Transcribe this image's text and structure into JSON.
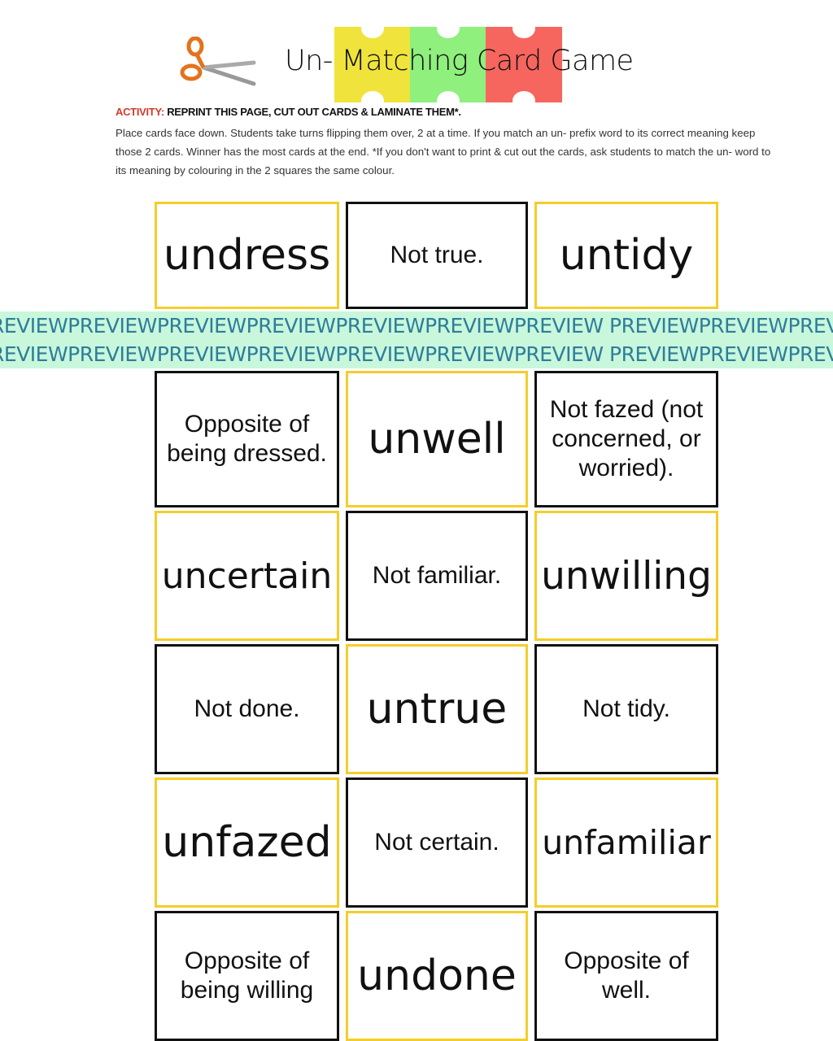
{
  "header": {
    "title": "Un- Matching Card Game",
    "activity_label": "ACTIVITY:",
    "activity_text": "REPRINT THIS PAGE, CUT OUT CARDS & LAMINATE THEM*.",
    "instructions": "Place cards face down. Students take turns flipping them over, 2 at a time. If you match an un- prefix word to its correct meaning keep those 2 cards. Winner has the most cards at the end. *If you don't want to print & cut out the cards, ask students to match the un- word to its meaning by colouring in the 2 squares the same colour.",
    "puzzle_colors": [
      "#f0e33b",
      "#8ff07d",
      "#f7655f"
    ]
  },
  "cards": [
    {
      "text": "undress",
      "kind": "word"
    },
    {
      "text": "Not true.",
      "kind": "def"
    },
    {
      "text": "untidy",
      "kind": "word"
    },
    {
      "text": "Opposite of being dressed.",
      "kind": "def"
    },
    {
      "text": "unwell",
      "kind": "word"
    },
    {
      "text": "Not fazed (not concerned, or worried).",
      "kind": "def"
    },
    {
      "text": "uncertain",
      "kind": "word"
    },
    {
      "text": "Not familiar.",
      "kind": "def"
    },
    {
      "text": "unwilling",
      "kind": "word"
    },
    {
      "text": "Not done.",
      "kind": "def"
    },
    {
      "text": "untrue",
      "kind": "word"
    },
    {
      "text": "Not tidy.",
      "kind": "def"
    },
    {
      "text": "unfazed",
      "kind": "word"
    },
    {
      "text": "Not certain.",
      "kind": "def"
    },
    {
      "text": "unfamiliar",
      "kind": "word"
    },
    {
      "text": "Opposite of being willing",
      "kind": "def"
    },
    {
      "text": "undone",
      "kind": "word"
    },
    {
      "text": "Opposite of well.",
      "kind": "def"
    }
  ],
  "watermark": {
    "line": "REVIEWPREVIEWPREVIEWPREVIEWPREVIEWPREVIEWPREVIEW PREVIEWPREVIEWPREVIE"
  },
  "colors": {
    "card_yellow": "#f5cd2b",
    "card_black": "#111111",
    "watermark_band": "#c8f7dc",
    "watermark_text": "#2e7d9a",
    "activity_red": "#d23a2a"
  }
}
